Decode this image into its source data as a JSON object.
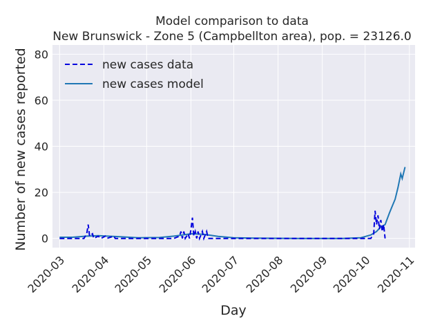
{
  "chart_data": {
    "type": "line",
    "title": "Model comparison to data",
    "subtitle": "New Brunswick - Zone 5 (Campbellton area), pop. = 23126.0",
    "xlabel": "Day",
    "ylabel": "Number of new cases reported",
    "xlim": [
      "2020-02-25",
      "2020-11-05"
    ],
    "ylim": [
      -4,
      84
    ],
    "x_ticks": [
      "2020-03",
      "2020-04",
      "2020-05",
      "2020-06",
      "2020-07",
      "2020-08",
      "2020-09",
      "2020-10",
      "2020-11"
    ],
    "y_ticks": [
      0,
      20,
      40,
      60,
      80
    ],
    "grid": true,
    "legend_position": "upper-left",
    "colors": {
      "background": "#eaeaf2",
      "grid": "#ffffff",
      "data": "#0000dd",
      "model": "#1f77b4"
    },
    "series": [
      {
        "name": "new cases data",
        "style": "dashed",
        "points": [
          [
            "2020-03-01",
            0
          ],
          [
            "2020-03-10",
            0
          ],
          [
            "2020-03-18",
            0
          ],
          [
            "2020-03-20",
            2
          ],
          [
            "2020-03-21",
            6
          ],
          [
            "2020-03-22",
            1
          ],
          [
            "2020-03-24",
            2
          ],
          [
            "2020-03-25",
            0
          ],
          [
            "2020-03-28",
            1
          ],
          [
            "2020-03-30",
            0
          ],
          [
            "2020-04-02",
            1
          ],
          [
            "2020-04-03",
            0
          ],
          [
            "2020-04-08",
            1
          ],
          [
            "2020-04-09",
            0
          ],
          [
            "2020-05-20",
            0
          ],
          [
            "2020-05-24",
            1
          ],
          [
            "2020-05-25",
            3
          ],
          [
            "2020-05-26",
            0
          ],
          [
            "2020-05-27",
            3
          ],
          [
            "2020-05-28",
            0
          ],
          [
            "2020-05-30",
            2
          ],
          [
            "2020-05-31",
            0
          ],
          [
            "2020-06-01",
            4
          ],
          [
            "2020-06-02",
            9
          ],
          [
            "2020-06-03",
            1
          ],
          [
            "2020-06-04",
            3
          ],
          [
            "2020-06-05",
            0
          ],
          [
            "2020-06-06",
            3
          ],
          [
            "2020-06-07",
            0
          ],
          [
            "2020-06-09",
            3
          ],
          [
            "2020-06-10",
            0
          ],
          [
            "2020-06-12",
            3
          ],
          [
            "2020-06-13",
            0
          ],
          [
            "2020-07-01",
            0
          ],
          [
            "2020-08-01",
            0
          ],
          [
            "2020-09-01",
            0
          ],
          [
            "2020-10-05",
            0
          ],
          [
            "2020-10-07",
            2
          ],
          [
            "2020-10-08",
            12
          ],
          [
            "2020-10-09",
            6
          ],
          [
            "2020-10-10",
            10
          ],
          [
            "2020-10-11",
            4
          ],
          [
            "2020-10-12",
            8
          ],
          [
            "2020-10-13",
            3
          ],
          [
            "2020-10-14",
            6
          ],
          [
            "2020-10-15",
            0
          ]
        ]
      },
      {
        "name": "new cases model",
        "style": "solid",
        "points": [
          [
            "2020-03-01",
            0.5
          ],
          [
            "2020-03-10",
            0.5
          ],
          [
            "2020-03-20",
            1
          ],
          [
            "2020-03-28",
            1.2
          ],
          [
            "2020-04-10",
            0.8
          ],
          [
            "2020-04-25",
            0.3
          ],
          [
            "2020-05-10",
            0.4
          ],
          [
            "2020-05-20",
            1
          ],
          [
            "2020-06-01",
            2
          ],
          [
            "2020-06-10",
            1.8
          ],
          [
            "2020-06-20",
            0.9
          ],
          [
            "2020-07-01",
            0.3
          ],
          [
            "2020-07-15",
            0.1
          ],
          [
            "2020-08-15",
            0
          ],
          [
            "2020-09-15",
            0
          ],
          [
            "2020-09-28",
            0.3
          ],
          [
            "2020-10-05",
            1.5
          ],
          [
            "2020-10-09",
            3
          ],
          [
            "2020-10-12",
            5
          ],
          [
            "2020-10-15",
            6
          ],
          [
            "2020-10-18",
            11
          ],
          [
            "2020-10-20",
            14
          ],
          [
            "2020-10-22",
            17
          ],
          [
            "2020-10-24",
            22
          ],
          [
            "2020-10-26",
            28
          ],
          [
            "2020-10-27",
            26
          ],
          [
            "2020-10-29",
            31
          ]
        ]
      }
    ]
  }
}
